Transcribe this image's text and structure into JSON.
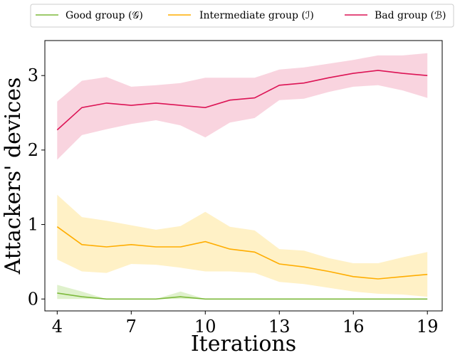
{
  "chart_data": {
    "type": "line",
    "title": "",
    "xlabel": "Iterations",
    "ylabel": "Attackers' devices",
    "x": [
      4,
      5,
      6,
      7,
      8,
      9,
      10,
      11,
      12,
      13,
      14,
      15,
      16,
      17,
      18,
      19
    ],
    "xlim": [
      3.5,
      19.6
    ],
    "ylim": [
      -0.16,
      3.47
    ],
    "xticks": [
      4,
      7,
      10,
      13,
      16,
      19
    ],
    "yticks": [
      0,
      1,
      2,
      3
    ],
    "grid": false,
    "legend_position": "top, above plot",
    "series": [
      {
        "name": "Good group (𝒢)",
        "color": "#7dba3c",
        "band_color": "#dcefc6",
        "values": [
          0.08,
          0.03,
          0.0,
          0.0,
          0.0,
          0.03,
          0.0,
          0.0,
          0.0,
          0.0,
          0.0,
          0.0,
          0.0,
          0.0,
          0.0,
          0.0
        ],
        "lower": [
          0.0,
          0.0,
          0.0,
          0.0,
          0.0,
          0.0,
          0.0,
          0.0,
          0.0,
          0.0,
          0.0,
          0.0,
          0.0,
          0.0,
          0.0,
          0.0
        ],
        "upper": [
          0.19,
          0.1,
          0.0,
          0.0,
          0.0,
          0.1,
          0.0,
          0.0,
          0.0,
          0.0,
          0.0,
          0.0,
          0.0,
          0.0,
          0.0,
          0.0
        ]
      },
      {
        "name": "Intermediate group (ℐ)",
        "color": "#ffad00",
        "band_color": "#fff0c0",
        "values": [
          0.97,
          0.73,
          0.7,
          0.73,
          0.7,
          0.7,
          0.77,
          0.67,
          0.63,
          0.47,
          0.43,
          0.37,
          0.3,
          0.27,
          0.3,
          0.33
        ],
        "lower": [
          0.53,
          0.37,
          0.35,
          0.47,
          0.46,
          0.42,
          0.37,
          0.37,
          0.35,
          0.23,
          0.2,
          0.15,
          0.1,
          0.07,
          0.06,
          0.03
        ],
        "upper": [
          1.4,
          1.1,
          1.05,
          0.99,
          0.93,
          0.98,
          1.17,
          0.97,
          0.92,
          0.67,
          0.65,
          0.55,
          0.48,
          0.48,
          0.56,
          0.63
        ]
      },
      {
        "name": "Bad group (ℬ)",
        "color": "#dc1455",
        "band_color": "#f8cfdc",
        "values": [
          2.27,
          2.57,
          2.63,
          2.6,
          2.63,
          2.6,
          2.57,
          2.67,
          2.7,
          2.87,
          2.9,
          2.97,
          3.03,
          3.07,
          3.03,
          3.0
        ],
        "lower": [
          1.87,
          2.2,
          2.28,
          2.35,
          2.4,
          2.33,
          2.17,
          2.37,
          2.43,
          2.67,
          2.69,
          2.78,
          2.85,
          2.87,
          2.8,
          2.7
        ],
        "upper": [
          2.65,
          2.93,
          2.98,
          2.85,
          2.87,
          2.9,
          2.97,
          2.97,
          2.97,
          3.08,
          3.11,
          3.16,
          3.21,
          3.27,
          3.27,
          3.3
        ]
      }
    ]
  }
}
